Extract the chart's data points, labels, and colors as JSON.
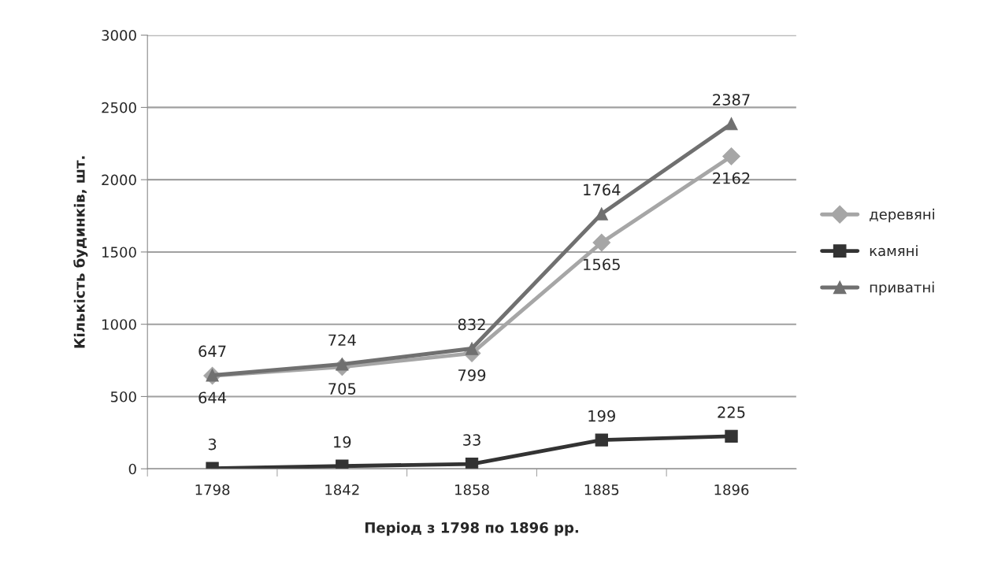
{
  "chart_data": {
    "type": "line",
    "xlabel": "Період з 1798 по 1896 рр.",
    "ylabel": "Кількість будинків, шт.",
    "categories": [
      "1798",
      "1842",
      "1858",
      "1885",
      "1896"
    ],
    "series": [
      {
        "name": "деревяні",
        "color": "#a6a6a6",
        "marker": "diamond",
        "values": [
          644,
          705,
          799,
          1565,
          2162
        ]
      },
      {
        "name": "камяні",
        "color": "#333333",
        "marker": "square",
        "values": [
          3,
          19,
          33,
          199,
          225
        ]
      },
      {
        "name": "приватні",
        "color": "#707070",
        "marker": "triangle",
        "values": [
          647,
          724,
          832,
          1764,
          2387
        ]
      }
    ],
    "ylim": [
      0,
      3000
    ],
    "yticks": [
      0,
      500,
      1000,
      1500,
      2000,
      2500,
      3000
    ],
    "grid": "y",
    "legend": "right",
    "data_labels": true,
    "line_style": "solid"
  }
}
